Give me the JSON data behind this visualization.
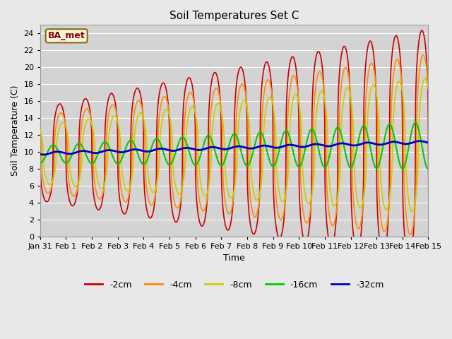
{
  "title": "Soil Temperatures Set C",
  "xlabel": "Time",
  "ylabel": "Soil Temperature (C)",
  "ylim": [
    0,
    25
  ],
  "yticks": [
    0,
    2,
    4,
    6,
    8,
    10,
    12,
    14,
    16,
    18,
    20,
    22,
    24
  ],
  "background_color": "#e8e8e8",
  "plot_bg_color": "#d3d3d3",
  "legend_label": "BA_met",
  "legend_label_color": "#8B0000",
  "legend_label_bg": "#f5f5dc",
  "legend_label_border": "#8B6914",
  "series_colors": {
    "-2cm": "#cc0000",
    "-4cm": "#ff8c00",
    "-8cm": "#cccc00",
    "-16cm": "#00cc00",
    "-32cm": "#0000bb"
  },
  "line_widths": {
    "-2cm": 1.2,
    "-4cm": 1.2,
    "-8cm": 1.2,
    "-16cm": 1.5,
    "-32cm": 2.0
  },
  "xtick_labels": [
    "Jan 31",
    "Feb 1",
    "Feb 2",
    "Feb 3",
    "Feb 4",
    "Feb 5",
    "Feb 6",
    "Feb 7",
    "Feb 8",
    "Feb 9",
    "Feb 10",
    "Feb 11",
    "Feb 12",
    "Feb 13",
    "Feb 14",
    "Feb 15"
  ],
  "xtick_positions": [
    0,
    1,
    2,
    3,
    4,
    5,
    6,
    7,
    8,
    9,
    10,
    11,
    12,
    13,
    14,
    15
  ],
  "figsize": [
    6.4,
    4.8
  ],
  "dpi": 100
}
